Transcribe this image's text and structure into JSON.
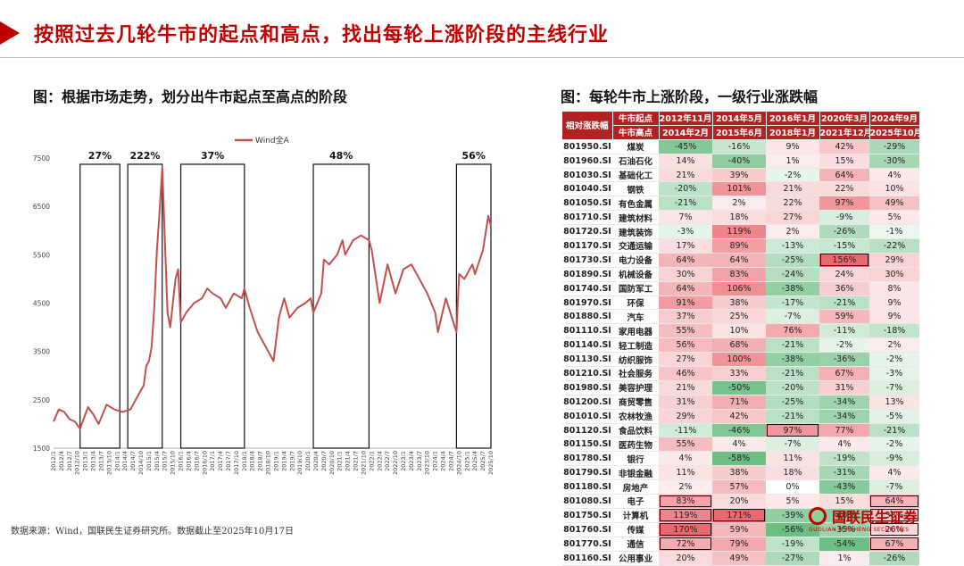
{
  "header": {
    "title": "按照过去几轮牛市的起点和高点，找出每轮上涨阶段的主线行业"
  },
  "left_panel": {
    "caption": "图：根据市场走势，划分出牛市起点至高点的阶段"
  },
  "right_panel": {
    "caption": "图：每轮牛市上涨阶段，一级行业涨跌幅"
  },
  "footer": {
    "source": "数据来源：Wind，国联民生证券研究所。数据截止至2025年10月17日"
  },
  "logo": {
    "cn": "国联民生证券",
    "en": "GUOLIAN MINSHENG SECURITIES"
  },
  "colors": {
    "accent": "#c00000",
    "line": "#c0504d",
    "up": "#e8646a",
    "down": "#5fb878"
  },
  "chart_data": [
    {
      "type": "line",
      "title": "",
      "xlabel": "",
      "ylabel": "",
      "series": [
        {
          "name": "Wind全A"
        }
      ],
      "ylim": [
        1500,
        7500
      ],
      "yticks": [
        1500,
        2500,
        3500,
        4500,
        5500,
        6500,
        7500
      ],
      "x_tick_labels": [
        "2012/1",
        "2012/4",
        "2012/7",
        "2012/10",
        "2013/1",
        "2013/4",
        "2013/7",
        "2013/10",
        "2014/1",
        "2014/4",
        "2014/7",
        "2014/10",
        "2015/1",
        "2015/4",
        "2015/7",
        "2015/10",
        "2016/1",
        "2016/4",
        "2016/7",
        "2016/10",
        "2017/1",
        "2017/4",
        "2017/7",
        "2017/10",
        "2018/1",
        "2018/4",
        "2018/7",
        "2018/10",
        "2019/1",
        "2019/4",
        "2019/7",
        "2019/10",
        "2020/1",
        "2020/4",
        "2020/7",
        "2020/10",
        "2021/1",
        "2021/4",
        "2021/7",
        "2021/10",
        "2022/1",
        "2022/4",
        "2022/7",
        "2022/10",
        "2023/1",
        "2023/4",
        "2023/7",
        "2023/10",
        "2024/1",
        "2024/4",
        "2024/7",
        "2024/10",
        "2025/1",
        "2025/4",
        "2025/7",
        "2025/10"
      ],
      "points": [
        [
          "2012-01",
          2050
        ],
        [
          "2012-03",
          2300
        ],
        [
          "2012-05",
          2250
        ],
        [
          "2012-07",
          2100
        ],
        [
          "2012-09",
          2050
        ],
        [
          "2012-11",
          1900
        ],
        [
          "2013-02",
          2350
        ],
        [
          "2013-04",
          2200
        ],
        [
          "2013-06",
          2000
        ],
        [
          "2013-09",
          2400
        ],
        [
          "2013-12",
          2300
        ],
        [
          "2014-03",
          2250
        ],
        [
          "2014-06",
          2300
        ],
        [
          "2014-09",
          2600
        ],
        [
          "2014-11",
          2800
        ],
        [
          "2014-12",
          3200
        ],
        [
          "2015-01",
          3300
        ],
        [
          "2015-02",
          3600
        ],
        [
          "2015-03",
          4400
        ],
        [
          "2015-04",
          5600
        ],
        [
          "2015-05",
          6400
        ],
        [
          "2015-06",
          7300
        ],
        [
          "2015-07",
          5800
        ],
        [
          "2015-08",
          4300
        ],
        [
          "2015-09",
          4000
        ],
        [
          "2015-11",
          5000
        ],
        [
          "2015-12",
          5200
        ],
        [
          "2016-01",
          4100
        ],
        [
          "2016-03",
          4300
        ],
        [
          "2016-06",
          4500
        ],
        [
          "2016-09",
          4600
        ],
        [
          "2016-11",
          4800
        ],
        [
          "2017-01",
          4700
        ],
        [
          "2017-04",
          4600
        ],
        [
          "2017-06",
          4400
        ],
        [
          "2017-09",
          4700
        ],
        [
          "2017-12",
          4600
        ],
        [
          "2018-01",
          4800
        ],
        [
          "2018-03",
          4400
        ],
        [
          "2018-06",
          3900
        ],
        [
          "2018-09",
          3600
        ],
        [
          "2018-12",
          3300
        ],
        [
          "2019-02",
          4200
        ],
        [
          "2019-04",
          4600
        ],
        [
          "2019-06",
          4200
        ],
        [
          "2019-09",
          4400
        ],
        [
          "2019-12",
          4500
        ],
        [
          "2020-02",
          4600
        ],
        [
          "2020-03",
          4300
        ],
        [
          "2020-06",
          4700
        ],
        [
          "2020-07",
          5400
        ],
        [
          "2020-09",
          5300
        ],
        [
          "2020-12",
          5500
        ],
        [
          "2021-02",
          5800
        ],
        [
          "2021-03",
          5500
        ],
        [
          "2021-06",
          5800
        ],
        [
          "2021-09",
          5900
        ],
        [
          "2021-12",
          5800
        ],
        [
          "2022-01",
          5600
        ],
        [
          "2022-04",
          4500
        ],
        [
          "2022-07",
          5300
        ],
        [
          "2022-10",
          4700
        ],
        [
          "2023-01",
          5200
        ],
        [
          "2023-04",
          5300
        ],
        [
          "2023-07",
          5000
        ],
        [
          "2023-10",
          4700
        ],
        [
          "2024-01",
          4300
        ],
        [
          "2024-02",
          3900
        ],
        [
          "2024-05",
          4600
        ],
        [
          "2024-09",
          3900
        ],
        [
          "2024-10",
          5100
        ],
        [
          "2024-12",
          5000
        ],
        [
          "2025-03",
          5300
        ],
        [
          "2025-04",
          5100
        ],
        [
          "2025-07",
          5600
        ],
        [
          "2025-09",
          6300
        ],
        [
          "2025-10",
          6100
        ]
      ],
      "annotations": [
        {
          "label": "27%",
          "x_start": "2012-11",
          "x_end": "2014-02"
        },
        {
          "label": "222%",
          "x_start": "2014-05",
          "x_end": "2015-06"
        },
        {
          "label": "37%",
          "x_start": "2016-01",
          "x_end": "2018-01"
        },
        {
          "label": "48%",
          "x_start": "2020-03",
          "x_end": "2021-12"
        },
        {
          "label": "56%",
          "x_start": "2024-09",
          "x_end": "2025-10"
        }
      ]
    },
    {
      "type": "table",
      "corner": [
        "相对涨跌幅",
        "牛市起点",
        "牛市高点"
      ],
      "periods": [
        {
          "start": "2012年11月",
          "end": "2014年2月"
        },
        {
          "start": "2014年5月",
          "end": "2015年6月"
        },
        {
          "start": "2016年1月",
          "end": "2018年1月"
        },
        {
          "start": "2020年3月",
          "end": "2021年12月"
        },
        {
          "start": "2024年9月",
          "end": "2025年10月"
        }
      ],
      "rows": [
        {
          "code": "801950.SI",
          "industry": "煤炭",
          "values": [
            -45,
            -16,
            9,
            42,
            -29
          ]
        },
        {
          "code": "801960.SI",
          "industry": "石油石化",
          "values": [
            14,
            -40,
            1,
            15,
            -30
          ]
        },
        {
          "code": "801030.SI",
          "industry": "基础化工",
          "values": [
            21,
            39,
            -2,
            64,
            4
          ]
        },
        {
          "code": "801040.SI",
          "industry": "钢铁",
          "values": [
            -20,
            101,
            21,
            22,
            10
          ]
        },
        {
          "code": "801050.SI",
          "industry": "有色金属",
          "values": [
            -21,
            2,
            22,
            97,
            49
          ]
        },
        {
          "code": "801710.SI",
          "industry": "建筑材料",
          "values": [
            7,
            18,
            27,
            -9,
            5
          ]
        },
        {
          "code": "801720.SI",
          "industry": "建筑装饰",
          "values": [
            -3,
            119,
            2,
            -26,
            -1
          ]
        },
        {
          "code": "801170.SI",
          "industry": "交通运输",
          "values": [
            17,
            89,
            -13,
            -15,
            -22
          ]
        },
        {
          "code": "801730.SI",
          "industry": "电力设备",
          "values": [
            64,
            64,
            -25,
            156,
            29
          ]
        },
        {
          "code": "801890.SI",
          "industry": "机械设备",
          "values": [
            30,
            83,
            -24,
            24,
            30
          ]
        },
        {
          "code": "801740.SI",
          "industry": "国防军工",
          "values": [
            64,
            106,
            -38,
            36,
            8
          ]
        },
        {
          "code": "801970.SI",
          "industry": "环保",
          "values": [
            91,
            38,
            -17,
            -21,
            9
          ]
        },
        {
          "code": "801880.SI",
          "industry": "汽车",
          "values": [
            37,
            25,
            -7,
            59,
            9
          ]
        },
        {
          "code": "801110.SI",
          "industry": "家用电器",
          "values": [
            55,
            10,
            76,
            -11,
            -18
          ]
        },
        {
          "code": "801140.SI",
          "industry": "轻工制造",
          "values": [
            56,
            68,
            -21,
            -2,
            2
          ]
        },
        {
          "code": "801130.SI",
          "industry": "纺织服饰",
          "values": [
            27,
            100,
            -38,
            -36,
            -2
          ]
        },
        {
          "code": "801210.SI",
          "industry": "社会服务",
          "values": [
            46,
            33,
            -21,
            67,
            -3
          ]
        },
        {
          "code": "801980.SI",
          "industry": "美容护理",
          "values": [
            21,
            -50,
            -20,
            31,
            -7
          ]
        },
        {
          "code": "801200.SI",
          "industry": "商贸零售",
          "values": [
            31,
            71,
            -25,
            -34,
            13
          ]
        },
        {
          "code": "801010.SI",
          "industry": "农林牧渔",
          "values": [
            29,
            42,
            -21,
            -34,
            -5
          ]
        },
        {
          "code": "801120.SI",
          "industry": "食品饮料",
          "values": [
            -11,
            -46,
            97,
            77,
            -21
          ]
        },
        {
          "code": "801150.SI",
          "industry": "医药生物",
          "values": [
            55,
            4,
            -7,
            4,
            -2
          ]
        },
        {
          "code": "801780.SI",
          "industry": "银行",
          "values": [
            4,
            -58,
            11,
            -19,
            -9
          ]
        },
        {
          "code": "801790.SI",
          "industry": "非银金融",
          "values": [
            11,
            38,
            18,
            -31,
            4
          ]
        },
        {
          "code": "801180.SI",
          "industry": "房地产",
          "values": [
            2,
            57,
            0,
            -43,
            -7
          ]
        },
        {
          "code": "801080.SI",
          "industry": "电子",
          "values": [
            83,
            20,
            5,
            15,
            64
          ]
        },
        {
          "code": "801750.SI",
          "industry": "计算机",
          "values": [
            119,
            171,
            -39,
            -40,
            38
          ]
        },
        {
          "code": "801760.SI",
          "industry": "传媒",
          "values": [
            170,
            59,
            -56,
            -35,
            26
          ]
        },
        {
          "code": "801770.SI",
          "industry": "通信",
          "values": [
            72,
            79,
            -19,
            -54,
            67
          ]
        },
        {
          "code": "801160.SI",
          "industry": "公用事业",
          "values": [
            20,
            49,
            -27,
            1,
            -26
          ]
        }
      ],
      "highlight_boxes": [
        {
          "column": 0,
          "row_start": 25,
          "row_end": 28
        },
        {
          "column": 1,
          "row_start": 26,
          "row_end": 26
        },
        {
          "column": 2,
          "row_start": 20,
          "row_end": 20
        },
        {
          "column": 3,
          "row_start": 8,
          "row_end": 8
        },
        {
          "column": 4,
          "row_start": 25,
          "row_end": 28
        }
      ]
    }
  ]
}
